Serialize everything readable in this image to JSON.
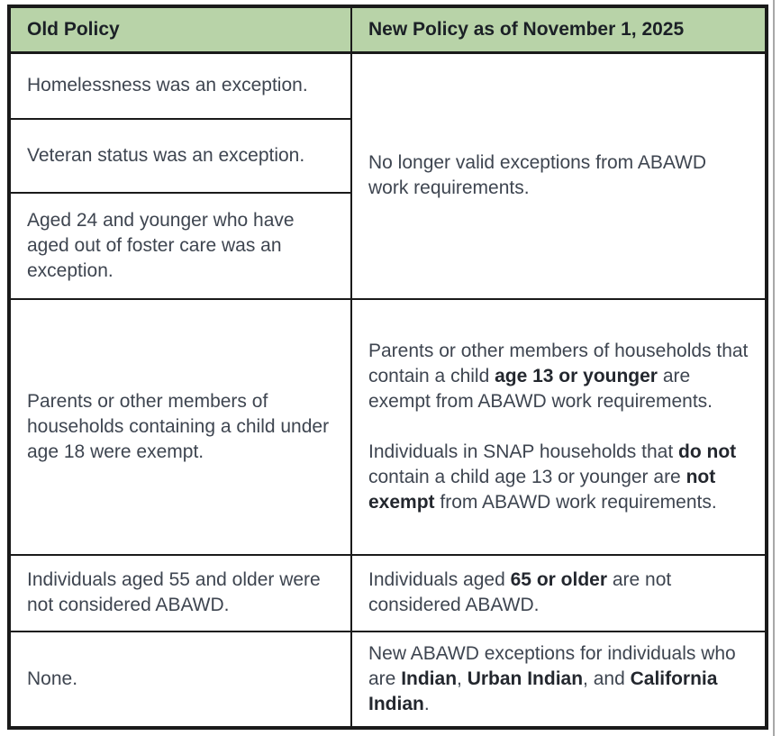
{
  "colors": {
    "header_bg": "#b8d3a8",
    "border": "#1a1a1a",
    "body_text": "#3e4550",
    "bold_text": "#23272e",
    "header_text": "#1b2026",
    "page_edge": "#a8a8a8",
    "page_bg": "#ffffff"
  },
  "table": {
    "header": {
      "old_label": "Old Policy",
      "new_label": "New Policy as of November 1, 2025"
    },
    "old_policy_rows": [
      "Homelessness was an exception.",
      "Veteran status was an exception.",
      "Aged 24 and younger who have aged out of foster care was an exception.",
      "Parents or other members of households containing a child under age 18 were exempt.",
      "Individuals aged 55 and older were not considered ABAWD.",
      "None."
    ],
    "new_policy": {
      "merged_rows_1_3": "No longer valid exceptions from ABAWD work requirements.",
      "row4_p1": [
        {
          "t": "Parents or other members of households that contain a child ",
          "b": false
        },
        {
          "t": "age 13 or younger",
          "b": true
        },
        {
          "t": " are exempt from ABAWD work requirements.",
          "b": false
        }
      ],
      "row4_p2": [
        {
          "t": "Individuals in SNAP households that ",
          "b": false
        },
        {
          "t": "do not",
          "b": true
        },
        {
          "t": " contain a child age 13 or younger are ",
          "b": false
        },
        {
          "t": "not exempt",
          "b": true
        },
        {
          "t": " from ABAWD work requirements.",
          "b": false
        }
      ],
      "row5": [
        {
          "t": "Individuals aged ",
          "b": false
        },
        {
          "t": "65 or older",
          "b": true
        },
        {
          "t": " are not considered ABAWD.",
          "b": false
        }
      ],
      "row6": [
        {
          "t": "New ABAWD exceptions for individuals who are ",
          "b": false
        },
        {
          "t": "Indian",
          "b": true
        },
        {
          "t": ", ",
          "b": false
        },
        {
          "t": "Urban Indian",
          "b": true
        },
        {
          "t": ", and ",
          "b": false
        },
        {
          "t": "California Indian",
          "b": true
        },
        {
          "t": ".",
          "b": false
        }
      ]
    }
  }
}
